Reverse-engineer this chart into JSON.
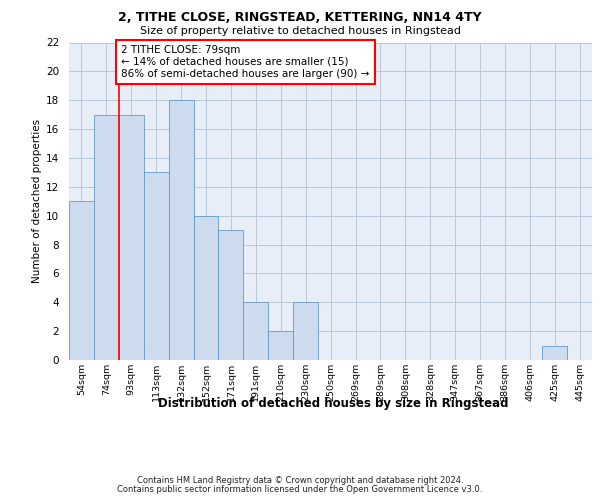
{
  "title1": "2, TITHE CLOSE, RINGSTEAD, KETTERING, NN14 4TY",
  "title2": "Size of property relative to detached houses in Ringstead",
  "xlabel": "Distribution of detached houses by size in Ringstead",
  "ylabel": "Number of detached properties",
  "categories": [
    "54sqm",
    "74sqm",
    "93sqm",
    "113sqm",
    "132sqm",
    "152sqm",
    "171sqm",
    "191sqm",
    "210sqm",
    "230sqm",
    "250sqm",
    "269sqm",
    "289sqm",
    "308sqm",
    "328sqm",
    "347sqm",
    "367sqm",
    "386sqm",
    "406sqm",
    "425sqm",
    "445sqm"
  ],
  "values": [
    11,
    17,
    17,
    13,
    18,
    10,
    9,
    4,
    2,
    4,
    0,
    0,
    0,
    0,
    0,
    0,
    0,
    0,
    0,
    1,
    0
  ],
  "bar_color": "#ccdcee",
  "bar_edge_color": "#6699cc",
  "bar_edge_width": 0.6,
  "red_line_x": 1.5,
  "annotation_text": "2 TITHE CLOSE: 79sqm\n← 14% of detached houses are smaller (15)\n86% of semi-detached houses are larger (90) →",
  "ylim_min": 0,
  "ylim_max": 22,
  "yticks": [
    0,
    2,
    4,
    6,
    8,
    10,
    12,
    14,
    16,
    18,
    20,
    22
  ],
  "footer1": "Contains HM Land Registry data © Crown copyright and database right 2024.",
  "footer2": "Contains public sector information licensed under the Open Government Licence v3.0.",
  "bg_color": "#e8eef8",
  "grid_color": "#b8c8dc"
}
